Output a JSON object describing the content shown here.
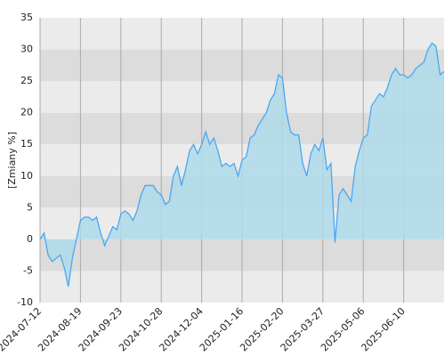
{
  "chart_data": {
    "type": "area",
    "ylabel": "[Zmiany %]",
    "categories": [
      "2024-07-12",
      null,
      null,
      null,
      null,
      null,
      null,
      null,
      null,
      null,
      "2024-08-19",
      null,
      null,
      null,
      null,
      null,
      null,
      null,
      null,
      null,
      "2024-09-23",
      null,
      null,
      null,
      null,
      null,
      null,
      null,
      null,
      null,
      "2024-10-28",
      null,
      null,
      null,
      null,
      null,
      null,
      null,
      null,
      null,
      "2024-12-04",
      null,
      null,
      null,
      null,
      null,
      null,
      null,
      null,
      null,
      "2025-01-16",
      null,
      null,
      null,
      null,
      null,
      null,
      null,
      null,
      null,
      "2025-02-20",
      null,
      null,
      null,
      null,
      null,
      null,
      null,
      null,
      null,
      "2025-03-27",
      null,
      null,
      null,
      null,
      null,
      null,
      null,
      null,
      null,
      "2025-05-06",
      null,
      null,
      null,
      null,
      null,
      null,
      null,
      null,
      null,
      "2025-06-10",
      null,
      null,
      null,
      null,
      null,
      null,
      null,
      null,
      null,
      null
    ],
    "values": [
      0,
      1,
      -2.5,
      -3.5,
      -3,
      -2.5,
      -4.5,
      -7.5,
      -3,
      0,
      3,
      3.5,
      3.5,
      3,
      3.5,
      1,
      -1,
      0.5,
      2,
      1.5,
      4,
      4.5,
      4,
      3,
      4.5,
      7,
      8.5,
      8.5,
      8.5,
      7.5,
      7,
      5.5,
      6,
      10,
      11.5,
      8.5,
      11,
      14,
      15,
      13.5,
      15,
      17,
      15,
      16,
      14,
      11.5,
      12,
      11.5,
      12,
      10,
      12.5,
      13,
      16,
      16.5,
      18,
      19,
      20,
      22,
      23,
      26,
      25.5,
      20,
      17,
      16.5,
      16.5,
      12,
      10,
      13.5,
      15,
      14,
      16,
      11,
      12,
      -0.5,
      7,
      8,
      7,
      6,
      11.5,
      14,
      16,
      16.5,
      21,
      22,
      23,
      22.5,
      24,
      26,
      27,
      26,
      26,
      25.5,
      26,
      27,
      27.5,
      28,
      30,
      31,
      30.5,
      26,
      26.5
    ],
    "line_color": "#4da6f0",
    "fill_color": "#aedbea",
    "ylim": [
      -10,
      35
    ],
    "yticks": [
      -10,
      -5,
      0,
      5,
      10,
      15,
      20,
      25,
      30,
      35
    ],
    "grid": true
  }
}
